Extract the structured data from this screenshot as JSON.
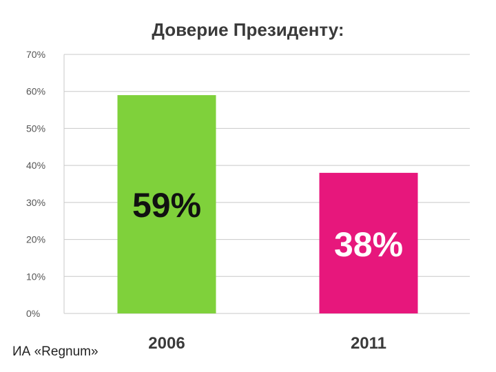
{
  "chart_data": {
    "type": "bar",
    "title": "Доверие Президенту:",
    "categories": [
      "2006",
      "2011"
    ],
    "values": [
      59,
      38
    ],
    "value_labels": [
      "59%",
      "38%"
    ],
    "bar_colors": [
      "#7fd13b",
      "#e7177c"
    ],
    "value_label_colors": [
      "#111111",
      "#ffffff"
    ],
    "ylim": [
      0,
      70
    ],
    "yticks": [
      0,
      10,
      20,
      30,
      40,
      50,
      60,
      70
    ],
    "ytick_labels": [
      "0%",
      "10%",
      "20%",
      "30%",
      "40%",
      "50%",
      "60%",
      "70%"
    ],
    "xlabel": "",
    "ylabel": "",
    "grid": true,
    "legend": "none"
  },
  "source": "ИА «Regnum»"
}
